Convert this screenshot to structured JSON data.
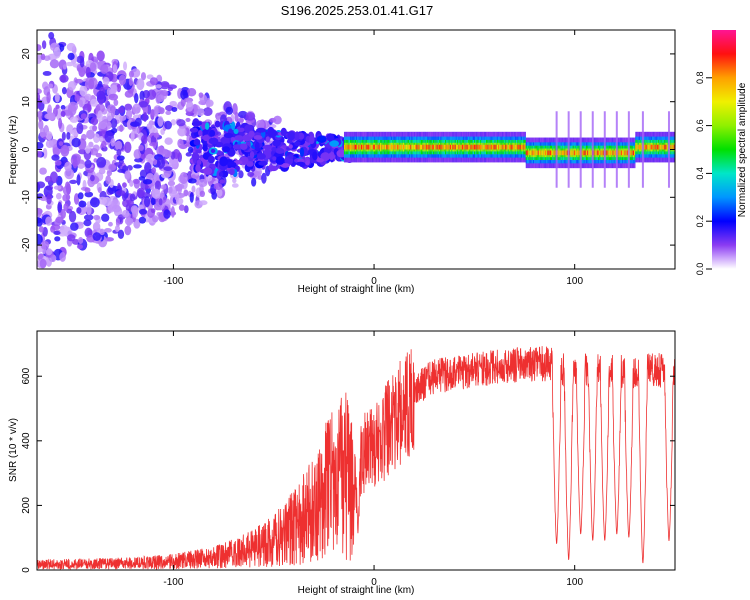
{
  "title": "S196.2025.253.01.41.G17",
  "colors": {
    "snr_line": "#ee3030",
    "axis": "#000000"
  },
  "chart_data": [
    {
      "type": "heatmap",
      "name": "spectrogram",
      "xlabel": "Height of straight line (km)",
      "ylabel": "Frequency (Hz)",
      "xlim": [
        -168,
        150
      ],
      "ylim": [
        -25,
        25
      ],
      "xticks": [
        -100,
        0,
        100
      ],
      "xtick_labels": [
        "-100",
        "0",
        "100"
      ],
      "yticks": [
        -20,
        -10,
        0,
        10,
        20
      ],
      "ytick_labels": [
        "-20",
        "-10",
        "0",
        "10",
        "20"
      ],
      "colorbar": {
        "label": "Normalized spectral amplitude",
        "range": [
          0,
          1
        ],
        "ticks": [
          0.0,
          0.2,
          0.4,
          0.6,
          0.8
        ],
        "tick_labels": [
          "0.0",
          "0.2",
          "0.4",
          "0.6",
          "0.8"
        ]
      },
      "features": [
        {
          "name": "narrowband-line",
          "x_range": [
            -15,
            150
          ],
          "center_frequency_hz": 0.5,
          "peak_amplitude": 0.9
        },
        {
          "name": "broadband-noise",
          "x_range": [
            -168,
            -10
          ],
          "frequency_range_hz": [
            -25,
            25
          ],
          "typical_amplitude": 0.1
        }
      ]
    },
    {
      "type": "line",
      "name": "snr",
      "xlabel": "Height of straight line (km)",
      "ylabel": "SNR (10 * v/v)",
      "xlim": [
        -168,
        150
      ],
      "ylim": [
        0,
        740
      ],
      "xticks": [
        -100,
        0,
        100
      ],
      "xtick_labels": [
        "-100",
        "0",
        "100"
      ],
      "yticks": [
        0,
        200,
        400,
        600
      ],
      "ytick_labels": [
        "0",
        "200",
        "400",
        "600"
      ],
      "envelope": {
        "x": [
          -168,
          -140,
          -120,
          -100,
          -80,
          -60,
          -50,
          -40,
          -30,
          -20,
          -15,
          -10,
          -5,
          0,
          5,
          10,
          20,
          30,
          50,
          70,
          88,
          95,
          105,
          120,
          133,
          140,
          150
        ],
        "y": [
          18,
          20,
          22,
          28,
          40,
          70,
          95,
          140,
          200,
          290,
          330,
          260,
          360,
          390,
          420,
          460,
          560,
          600,
          620,
          635,
          640,
          620,
          620,
          620,
          615,
          620,
          620
        ]
      },
      "dropouts": [
        {
          "x": 91,
          "min": 80
        },
        {
          "x": 97,
          "min": 30
        },
        {
          "x": 103,
          "min": 110
        },
        {
          "x": 109,
          "min": 90
        },
        {
          "x": 115,
          "min": 90
        },
        {
          "x": 121,
          "min": 110
        },
        {
          "x": 127,
          "min": 100
        },
        {
          "x": 134,
          "min": 20
        },
        {
          "x": 147,
          "min": 90
        }
      ],
      "dip": {
        "x": -8,
        "min": 110
      }
    }
  ]
}
